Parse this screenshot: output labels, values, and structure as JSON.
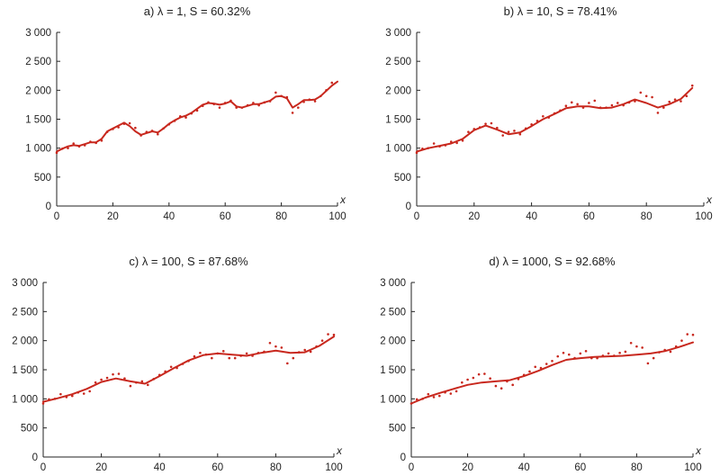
{
  "chart_data": [
    {
      "type": "scatter",
      "title": "a) λ = 1,  S = 60.32%",
      "xlabel": "x",
      "ylabel": "",
      "xlim": [
        0,
        100
      ],
      "ylim": [
        0,
        3000
      ],
      "xticks": [
        0,
        20,
        40,
        60,
        80,
        100
      ],
      "yticks": [
        0,
        500,
        1000,
        1500,
        2000,
        2500,
        3000
      ],
      "ytick_labels": [
        "0",
        "500",
        "1 000",
        "1 500",
        "2 000",
        "2 500",
        "3 000"
      ],
      "grid": false,
      "series": [
        {
          "kind": "points",
          "x": [
            0,
            2,
            4,
            6,
            8,
            10,
            12,
            14,
            16,
            18,
            20,
            22,
            24,
            26,
            28,
            30,
            32,
            34,
            36,
            38,
            40,
            42,
            44,
            46,
            48,
            50,
            52,
            54,
            56,
            58,
            60,
            62,
            64,
            66,
            68,
            70,
            72,
            74,
            76,
            78,
            80,
            82,
            84,
            86,
            88,
            90,
            92,
            94,
            96,
            98
          ],
          "y": [
            920,
            990,
            1000,
            1080,
            1030,
            1050,
            1110,
            1090,
            1130,
            1280,
            1330,
            1360,
            1420,
            1430,
            1350,
            1220,
            1280,
            1300,
            1240,
            1340,
            1410,
            1470,
            1550,
            1530,
            1600,
            1650,
            1730,
            1790,
            1760,
            1700,
            1780,
            1820,
            1700,
            1700,
            1740,
            1780,
            1740,
            1790,
            1810,
            1960,
            1900,
            1880,
            1610,
            1700,
            1800,
            1840,
            1810,
            1900,
            2000,
            2130
          ]
        },
        {
          "kind": "fit",
          "x": [
            0,
            2,
            4,
            6,
            8,
            10,
            12,
            14,
            16,
            18,
            20,
            22,
            24,
            26,
            28,
            30,
            32,
            34,
            36,
            38,
            40,
            42,
            44,
            46,
            48,
            50,
            52,
            54,
            56,
            58,
            60,
            62,
            64,
            66,
            68,
            70,
            72,
            74,
            76,
            78,
            80,
            82,
            84,
            86,
            88,
            90,
            92,
            94,
            96,
            98,
            100
          ],
          "y": [
            940,
            990,
            1030,
            1050,
            1040,
            1070,
            1100,
            1100,
            1160,
            1290,
            1340,
            1390,
            1440,
            1380,
            1290,
            1230,
            1260,
            1290,
            1270,
            1340,
            1420,
            1480,
            1530,
            1560,
            1610,
            1680,
            1750,
            1780,
            1770,
            1750,
            1770,
            1810,
            1720,
            1700,
            1730,
            1760,
            1760,
            1790,
            1820,
            1890,
            1900,
            1860,
            1700,
            1760,
            1830,
            1830,
            1840,
            1900,
            1990,
            2080,
            2150
          ]
        }
      ]
    },
    {
      "type": "scatter",
      "title": "b) λ = 10,  S = 78.41%",
      "xlabel": "x",
      "ylabel": "",
      "xlim": [
        0,
        100
      ],
      "ylim": [
        0,
        3000
      ],
      "xticks": [
        0,
        20,
        40,
        60,
        80,
        100
      ],
      "yticks": [
        0,
        500,
        1000,
        1500,
        2000,
        2500,
        3000
      ],
      "ytick_labels": [
        "0",
        "500",
        "1 000",
        "1 500",
        "2 000",
        "2 500",
        "3 000"
      ],
      "grid": false,
      "series": [
        {
          "kind": "points",
          "x": [
            0,
            2,
            4,
            6,
            8,
            10,
            12,
            14,
            16,
            18,
            20,
            22,
            24,
            26,
            28,
            30,
            32,
            34,
            36,
            38,
            40,
            42,
            44,
            46,
            48,
            50,
            52,
            54,
            56,
            58,
            60,
            62,
            64,
            66,
            68,
            70,
            72,
            74,
            76,
            78,
            80,
            82,
            84,
            86,
            88,
            90,
            92,
            94,
            96
          ],
          "y": [
            920,
            990,
            1000,
            1080,
            1030,
            1050,
            1110,
            1090,
            1130,
            1280,
            1330,
            1360,
            1420,
            1430,
            1350,
            1220,
            1280,
            1300,
            1240,
            1340,
            1410,
            1470,
            1550,
            1530,
            1600,
            1650,
            1730,
            1790,
            1760,
            1700,
            1780,
            1820,
            1700,
            1700,
            1740,
            1780,
            1740,
            1790,
            1810,
            1960,
            1900,
            1880,
            1610,
            1700,
            1800,
            1840,
            1810,
            1900,
            2080
          ]
        },
        {
          "kind": "fit",
          "x": [
            0,
            4,
            8,
            12,
            16,
            20,
            24,
            28,
            32,
            36,
            40,
            44,
            48,
            52,
            56,
            60,
            64,
            68,
            72,
            76,
            80,
            84,
            88,
            92,
            96
          ],
          "y": [
            940,
            1000,
            1040,
            1080,
            1160,
            1310,
            1390,
            1320,
            1240,
            1270,
            1380,
            1500,
            1590,
            1690,
            1720,
            1720,
            1690,
            1700,
            1760,
            1840,
            1780,
            1700,
            1760,
            1850,
            2040
          ]
        }
      ]
    },
    {
      "type": "scatter",
      "title": "c) λ = 100,  S = 87.68%",
      "xlabel": "x",
      "ylabel": "",
      "xlim": [
        0,
        100
      ],
      "ylim": [
        0,
        3000
      ],
      "xticks": [
        0,
        20,
        40,
        60,
        80,
        100
      ],
      "yticks": [
        0,
        500,
        1000,
        1500,
        2000,
        2500,
        3000
      ],
      "ytick_labels": [
        "0",
        "500",
        "1 000",
        "1 500",
        "2 000",
        "2 500",
        "3 000"
      ],
      "grid": false,
      "series": [
        {
          "kind": "points",
          "x": [
            0,
            2,
            4,
            6,
            8,
            10,
            12,
            14,
            16,
            18,
            20,
            22,
            24,
            26,
            28,
            30,
            32,
            34,
            36,
            38,
            40,
            42,
            44,
            46,
            48,
            50,
            52,
            54,
            56,
            58,
            60,
            62,
            64,
            66,
            68,
            70,
            72,
            74,
            76,
            78,
            80,
            82,
            84,
            86,
            88,
            90,
            92,
            94,
            96,
            98,
            100
          ],
          "y": [
            920,
            990,
            1000,
            1080,
            1030,
            1050,
            1110,
            1090,
            1130,
            1280,
            1330,
            1360,
            1420,
            1430,
            1350,
            1220,
            1280,
            1300,
            1240,
            1340,
            1410,
            1470,
            1550,
            1530,
            1600,
            1650,
            1730,
            1790,
            1760,
            1700,
            1780,
            1820,
            1700,
            1700,
            1740,
            1780,
            1740,
            1790,
            1810,
            1960,
            1900,
            1880,
            1610,
            1700,
            1800,
            1840,
            1810,
            1900,
            2000,
            2110,
            2100
          ]
        },
        {
          "kind": "fit",
          "x": [
            0,
            5,
            10,
            15,
            20,
            25,
            30,
            35,
            40,
            45,
            50,
            55,
            60,
            65,
            70,
            75,
            80,
            85,
            90,
            95,
            100
          ],
          "y": [
            950,
            1010,
            1080,
            1170,
            1290,
            1350,
            1300,
            1260,
            1390,
            1530,
            1660,
            1750,
            1780,
            1760,
            1740,
            1790,
            1830,
            1790,
            1800,
            1910,
            2070
          ]
        }
      ]
    },
    {
      "type": "scatter",
      "title": "d) λ = 1000,  S = 92.68%",
      "xlabel": "x",
      "ylabel": "",
      "xlim": [
        0,
        100
      ],
      "ylim": [
        0,
        3000
      ],
      "xticks": [
        0,
        20,
        40,
        60,
        80,
        100
      ],
      "yticks": [
        0,
        500,
        1000,
        1500,
        2000,
        2500,
        3000
      ],
      "ytick_labels": [
        "0",
        "500",
        "1 000",
        "1 500",
        "2 000",
        "2 500",
        "3 000"
      ],
      "grid": false,
      "series": [
        {
          "kind": "points",
          "x": [
            0,
            2,
            4,
            6,
            8,
            10,
            12,
            14,
            16,
            18,
            20,
            22,
            24,
            26,
            28,
            30,
            32,
            34,
            36,
            38,
            40,
            42,
            44,
            46,
            48,
            50,
            52,
            54,
            56,
            58,
            60,
            62,
            64,
            66,
            68,
            70,
            72,
            74,
            76,
            78,
            80,
            82,
            84,
            86,
            88,
            90,
            92,
            94,
            96,
            98,
            100
          ],
          "y": [
            920,
            990,
            1000,
            1080,
            1030,
            1050,
            1110,
            1090,
            1130,
            1280,
            1330,
            1360,
            1420,
            1430,
            1350,
            1220,
            1180,
            1300,
            1240,
            1340,
            1410,
            1470,
            1550,
            1530,
            1600,
            1650,
            1730,
            1790,
            1760,
            1700,
            1780,
            1820,
            1700,
            1700,
            1740,
            1780,
            1740,
            1790,
            1810,
            1960,
            1900,
            1880,
            1610,
            1700,
            1800,
            1840,
            1810,
            1900,
            2000,
            2110,
            2100
          ]
        },
        {
          "kind": "fit",
          "x": [
            0,
            5,
            10,
            15,
            20,
            25,
            30,
            35,
            40,
            45,
            50,
            55,
            60,
            65,
            70,
            75,
            80,
            85,
            90,
            95,
            100
          ],
          "y": [
            920,
            1020,
            1100,
            1170,
            1240,
            1280,
            1300,
            1320,
            1390,
            1480,
            1580,
            1670,
            1700,
            1720,
            1730,
            1740,
            1760,
            1780,
            1820,
            1890,
            1970
          ]
        }
      ]
    }
  ]
}
